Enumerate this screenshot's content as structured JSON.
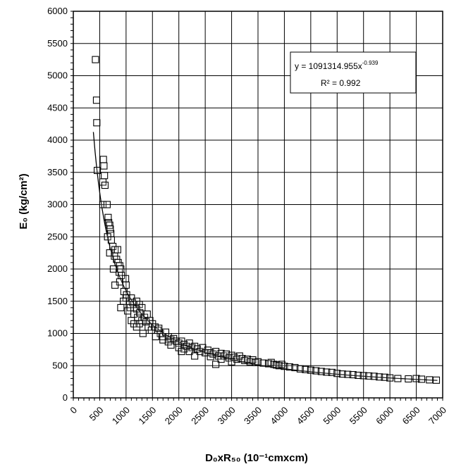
{
  "chart_data": {
    "type": "scatter",
    "xlabel": "D₀xR₅₀ (10⁻¹cmxcm)",
    "ylabel": "E₀ (kg/cm²)",
    "xlim": [
      0,
      7000
    ],
    "ylim": [
      0,
      6000
    ],
    "xticks": [
      "0",
      "500",
      "1000",
      "1500",
      "2000",
      "2500",
      "3000",
      "3500",
      "4000",
      "4500",
      "5000",
      "5500",
      "6000",
      "6500",
      "7000"
    ],
    "yticks": [
      "0",
      "500",
      "1000",
      "1500",
      "2000",
      "2500",
      "3000",
      "3500",
      "4000",
      "4500",
      "5000",
      "5500",
      "6000"
    ],
    "grid": true,
    "marker": "open-square",
    "trendline": {
      "type": "power",
      "coefficient": 1091314.955,
      "exponent": -0.939,
      "x_range": [
        380,
        6900
      ]
    },
    "annotation": {
      "equation": "y = 1091314.955x",
      "exponent_label": "-0.939",
      "r_squared": "R² = 0.992"
    },
    "series": [
      {
        "points": [
          [
            420,
            5250
          ],
          [
            440,
            4620
          ],
          [
            445,
            4270
          ],
          [
            455,
            3530
          ],
          [
            570,
            3700
          ],
          [
            580,
            3600
          ],
          [
            590,
            3450
          ],
          [
            560,
            3350
          ],
          [
            600,
            3300
          ],
          [
            560,
            3000
          ],
          [
            640,
            3000
          ],
          [
            660,
            2800
          ],
          [
            670,
            2720
          ],
          [
            690,
            2680
          ],
          [
            700,
            2620
          ],
          [
            710,
            2550
          ],
          [
            650,
            2500
          ],
          [
            720,
            2450
          ],
          [
            690,
            2250
          ],
          [
            750,
            2350
          ],
          [
            790,
            2300
          ],
          [
            780,
            2200
          ],
          [
            820,
            2150
          ],
          [
            840,
            2300
          ],
          [
            850,
            2100
          ],
          [
            760,
            2000
          ],
          [
            880,
            2050
          ],
          [
            870,
            1950
          ],
          [
            900,
            2000
          ],
          [
            910,
            1900
          ],
          [
            880,
            1800
          ],
          [
            790,
            1750
          ],
          [
            990,
            1850
          ],
          [
            1000,
            1750
          ],
          [
            960,
            1650
          ],
          [
            1010,
            1600
          ],
          [
            1000,
            1550
          ],
          [
            950,
            1500
          ],
          [
            900,
            1400
          ],
          [
            1100,
            1550
          ],
          [
            1120,
            1480
          ],
          [
            1150,
            1450
          ],
          [
            1080,
            1400
          ],
          [
            1030,
            1350
          ],
          [
            1200,
            1500
          ],
          [
            1250,
            1450
          ],
          [
            1200,
            1380
          ],
          [
            1300,
            1400
          ],
          [
            1150,
            1300
          ],
          [
            1220,
            1250
          ],
          [
            1260,
            1320
          ],
          [
            1100,
            1200
          ],
          [
            1150,
            1150
          ],
          [
            1250,
            1150
          ],
          [
            1300,
            1200
          ],
          [
            1200,
            1100
          ],
          [
            1350,
            1250
          ],
          [
            1400,
            1300
          ],
          [
            1380,
            1180
          ],
          [
            1420,
            1100
          ],
          [
            1450,
            1200
          ],
          [
            1500,
            1150
          ],
          [
            1480,
            1050
          ],
          [
            1320,
            1000
          ],
          [
            1550,
            1100
          ],
          [
            1600,
            1050
          ],
          [
            1650,
            1000
          ],
          [
            1560,
            950
          ],
          [
            1700,
            950
          ],
          [
            1620,
            1080
          ],
          [
            1750,
            1020
          ],
          [
            1800,
            950
          ],
          [
            1850,
            900
          ],
          [
            1900,
            920
          ],
          [
            1950,
            880
          ],
          [
            1700,
            900
          ],
          [
            1800,
            870
          ],
          [
            1850,
            820
          ],
          [
            2000,
            850
          ],
          [
            2050,
            880
          ],
          [
            2100,
            830
          ],
          [
            2000,
            780
          ],
          [
            2150,
            800
          ],
          [
            2200,
            850
          ],
          [
            2250,
            780
          ],
          [
            2300,
            800
          ],
          [
            2100,
            760
          ],
          [
            2050,
            720
          ],
          [
            2200,
            720
          ],
          [
            2350,
            760
          ],
          [
            2400,
            720
          ],
          [
            2450,
            780
          ],
          [
            2500,
            700
          ],
          [
            2300,
            650
          ],
          [
            2550,
            740
          ],
          [
            2600,
            700
          ],
          [
            2650,
            680
          ],
          [
            2700,
            720
          ],
          [
            2750,
            650
          ],
          [
            2600,
            640
          ],
          [
            2800,
            690
          ],
          [
            2850,
            650
          ],
          [
            2900,
            680
          ],
          [
            2950,
            620
          ],
          [
            3000,
            660
          ],
          [
            2800,
            600
          ],
          [
            3050,
            630
          ],
          [
            3100,
            600
          ],
          [
            3150,
            650
          ],
          [
            3200,
            610
          ],
          [
            3000,
            560
          ],
          [
            2700,
            520
          ],
          [
            3250,
            580
          ],
          [
            3300,
            600
          ],
          [
            3350,
            560
          ],
          [
            3400,
            590
          ],
          [
            3450,
            550
          ],
          [
            3500,
            560
          ],
          [
            3600,
            540
          ],
          [
            3700,
            530
          ],
          [
            3750,
            550
          ],
          [
            3800,
            520
          ],
          [
            3850,
            510
          ],
          [
            3900,
            500
          ],
          [
            3950,
            520
          ],
          [
            4000,
            490
          ],
          [
            4100,
            480
          ],
          [
            4200,
            470
          ],
          [
            4300,
            450
          ],
          [
            4400,
            440
          ],
          [
            4500,
            430
          ],
          [
            4600,
            420
          ],
          [
            4700,
            410
          ],
          [
            4800,
            400
          ],
          [
            4900,
            395
          ],
          [
            5000,
            380
          ],
          [
            5100,
            370
          ],
          [
            5200,
            365
          ],
          [
            5300,
            360
          ],
          [
            5400,
            350
          ],
          [
            5500,
            345
          ],
          [
            5600,
            340
          ],
          [
            5700,
            335
          ],
          [
            5800,
            325
          ],
          [
            5900,
            320
          ],
          [
            6000,
            310
          ],
          [
            6150,
            300
          ],
          [
            6350,
            295
          ],
          [
            6500,
            300
          ],
          [
            6600,
            290
          ],
          [
            6750,
            280
          ],
          [
            6880,
            275
          ]
        ]
      }
    ]
  }
}
